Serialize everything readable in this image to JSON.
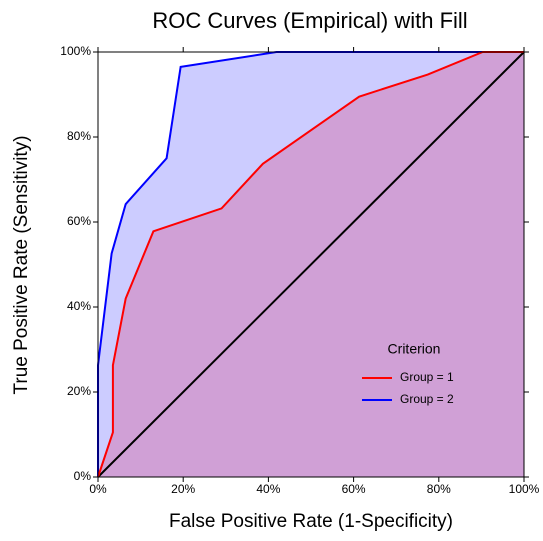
{
  "chart_data": {
    "type": "line",
    "title": "ROC Curves (Empirical) with Fill",
    "x_label": "False Positive Rate (1-Specificity)",
    "y_label": "True Positive Rate (Sensitivity)",
    "legend_title": "Criterion",
    "legend_position": "lower right",
    "xlim": [
      0,
      100
    ],
    "ylim": [
      0,
      100
    ],
    "xticks": [
      {
        "value": 0,
        "label": "0%"
      },
      {
        "value": 20,
        "label": "20%"
      },
      {
        "value": 40,
        "label": "40%"
      },
      {
        "value": 60,
        "label": "60%"
      },
      {
        "value": 80,
        "label": "80%"
      },
      {
        "value": 100,
        "label": "100%"
      }
    ],
    "yticks": [
      {
        "value": 0,
        "label": "0%"
      },
      {
        "value": 20,
        "label": "20%"
      },
      {
        "value": 40,
        "label": "40%"
      },
      {
        "value": 60,
        "label": "60%"
      },
      {
        "value": 80,
        "label": "80%"
      },
      {
        "value": 100,
        "label": "100%"
      }
    ],
    "series": [
      {
        "name": "Group = 2",
        "color": "#0000ff",
        "fill_color": "#ccccff",
        "x": [
          0,
          0,
          3.2,
          6.5,
          16.1,
          19.4,
          41.9,
          100
        ],
        "values": [
          0,
          26.3,
          52.6,
          64.2,
          75,
          96.5,
          100,
          100
        ]
      },
      {
        "name": "Group = 1",
        "color": "#ff0000",
        "fill_color": "#d0a0d6",
        "x": [
          0,
          3.5,
          3.5,
          6.5,
          13,
          29,
          38.7,
          61.3,
          77.4,
          90.3,
          100
        ],
        "values": [
          0,
          10.5,
          26.3,
          42,
          57.8,
          63.2,
          73.7,
          89.5,
          94.7,
          100,
          100
        ]
      }
    ]
  }
}
